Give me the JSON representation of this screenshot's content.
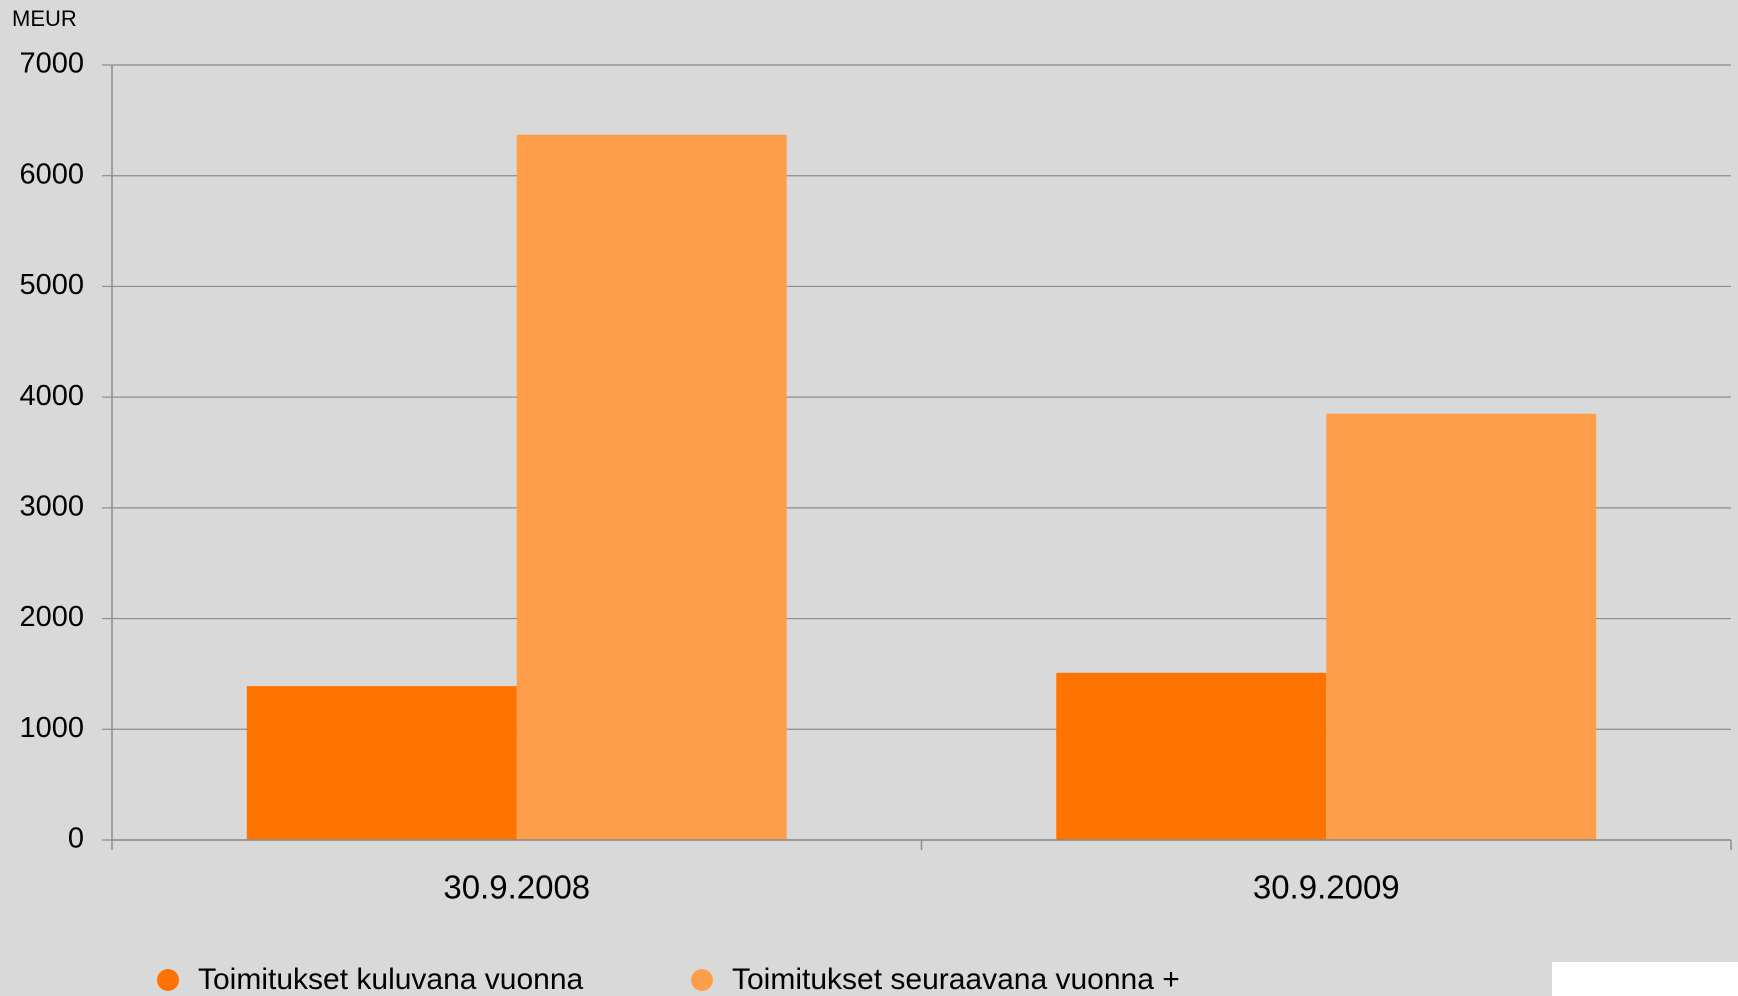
{
  "chart_data": {
    "type": "bar",
    "y_axis_label": "MEUR",
    "categories": [
      "30.9.2008",
      "30.9.2009"
    ],
    "series": [
      {
        "name": "Toimitukset kuluvana vuonna",
        "color": "#ff7300",
        "values": [
          1390,
          1510
        ]
      },
      {
        "name": "Toimitukset seuraavana vuonna +",
        "color": "#ff9e4a",
        "values": [
          6370,
          3850
        ]
      }
    ],
    "ylim": [
      0,
      7000
    ],
    "yticks": [
      0,
      1000,
      2000,
      3000,
      4000,
      5000,
      6000,
      7000
    ],
    "grid": true,
    "legend": "bottom"
  }
}
